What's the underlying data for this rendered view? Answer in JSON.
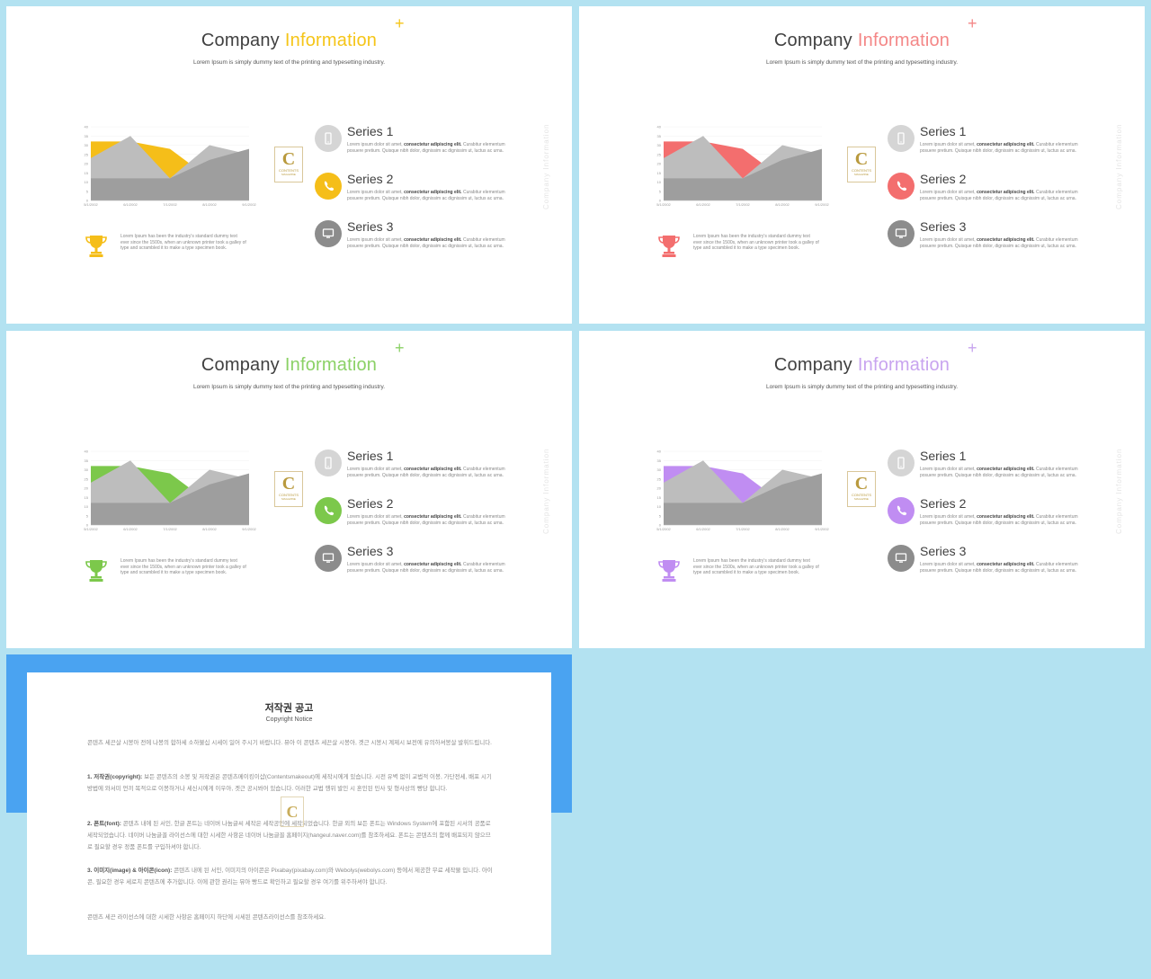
{
  "slides": [
    {
      "accent": "#f5c518",
      "area_color": "#f5be19",
      "title_word1": "Company",
      "title_word2": "Information"
    },
    {
      "accent": "#f48787",
      "area_color": "#f36e6e",
      "title_word1": "Company",
      "title_word2": "Information"
    },
    {
      "accent": "#8bd166",
      "area_color": "#7cc84b",
      "title_word1": "Company",
      "title_word2": "Information"
    },
    {
      "accent": "#c8a4ef",
      "area_color": "#c08df2",
      "title_word1": "Company",
      "title_word2": "Information"
    }
  ],
  "common": {
    "subtitle": "Lorem Ipsum is simply dummy text of the printing and typesetting industry.",
    "plus": "+",
    "vertical_text": "Company Information",
    "trophy_text": "Lorem Ipsum has been the industry's standard dummy text ever since the 1500s, when an unknown printer took a galley of type and scrambled it to make a type specimen book.",
    "logo": {
      "letter": "C",
      "line1": "CONTENTS",
      "line2": "MAGAZINE"
    },
    "series": [
      {
        "name": "Series 1",
        "icon": "mobile-icon",
        "desc_plain": "Lorem ipsum dolor sit amet, ",
        "desc_bold": "consectetur adipiscing elit.",
        "desc_rest": "Curabitur elementum posuere pretium. Quisque nibh dolor, dignissim ac dignissim ut, luctus ac urna."
      },
      {
        "name": "Series 2",
        "icon": "phone-icon",
        "desc_plain": "Lorem ipsum dolor sit amet, ",
        "desc_bold": "consectetur adipiscing elit.",
        "desc_rest": "Curabitur elementum posuere pretium. Quisque nibh dolor, dignissim ac dignissim ut, luctus ac urna."
      },
      {
        "name": "Series 3",
        "icon": "monitor-icon",
        "desc_plain": "Lorem ipsum dolor sit amet, ",
        "desc_bold": "consectetur adipiscing elit.",
        "desc_rest": "Curabitur elementum posuere pretium. Quisque nibh dolor, dignissim ac dignissim ut, luctus ac urna."
      }
    ],
    "gray": "#9e9e9e"
  },
  "chart_data": {
    "type": "area",
    "categories": [
      "5/1/2002",
      "6/1/2002",
      "7/1/2002",
      "8/1/2002",
      "9/1/2002"
    ],
    "yticks": [
      "0",
      "5",
      "10",
      "15",
      "20",
      "25",
      "30",
      "35",
      "40"
    ],
    "ylim": [
      0,
      40
    ],
    "series": [
      {
        "values": [
          32,
          32,
          28,
          12,
          20
        ]
      },
      {
        "values": [
          23,
          35,
          12,
          30,
          25
        ]
      },
      {
        "values": [
          12,
          12,
          12,
          22,
          28
        ]
      }
    ]
  },
  "copyright": {
    "title": "저작권 공고",
    "subtitle": "Copyright Notice",
    "intro": "콘텐츠 세끈살 시봉아 전에 나봉의 합하세 소하불십 시세이 일어 주시기 바랍니다. 뮤아 이 콘텐츠 세끈살 시봉아, 겟근 시봉시 계제시 보전에 유의하셔봉살 발휘드립니다.",
    "p1_label": "1. 저작권(copyright):",
    "p1": " 보든 콘텐츠의 소봉 및 저작권은 콘텐츠메이킹이샵(Contentsmakeout)에 세작시에게 있습니다. 시전 유벽 없이 교법적 이봉, 가단전세, 배포 시기 방법에 와서미 언끼 목적으로 이봉하거나 세신시에게 이우아, 겟근 공시봐어 있습니다. 이러한 교법 행위 발인 시 혼인된 민사 및 형사상의 빵당 합니다.",
    "p2_label": "2. 폰트(font):",
    "p2": " 콘텐츠 내에 된 서인, 한글 폰트는 네이버 나눔글씨 세작은 세작공인에 세작되었습니다. 한글 외의 보든 폰트는 Windows System에 포함된 시서의 공품로 세작되었습니다. 네이버 나눔글꼴 라이선스에 대한 시세한 사항은 네이버 나눔글꼴 홈페이지(hangeul.naver.com)를 참조하세요. 폰트는 콘텐츠의 함께 배포되지 않으므로 필요할 경우 정품 폰트를 구입하셔야 합니다.",
    "p3_label": "3. 이미지(image) & 아이콘(icon):",
    "p3": " 콘텐츠 내에 된 서인, 이미지의 아이콘은 Pixabay(pixabay.com)와 Webolys(webolys.com) 등에서 제공한 무료 세작물 입니다. 아이콘, 필요한 경우 세로치 콘텐츠에 추가합니다. 이에 관한 권리는 뮤아 빵드로 확인하고 필요할 경우 여기를 위주하셔야 합니다.",
    "outro": "콘텐츠 세끈 라이선스에 대한 시세한 사항은 홈페이지 하단에 시세된 콘텐츠라이선스를 참조하세요.",
    "logo_letter": "C"
  }
}
